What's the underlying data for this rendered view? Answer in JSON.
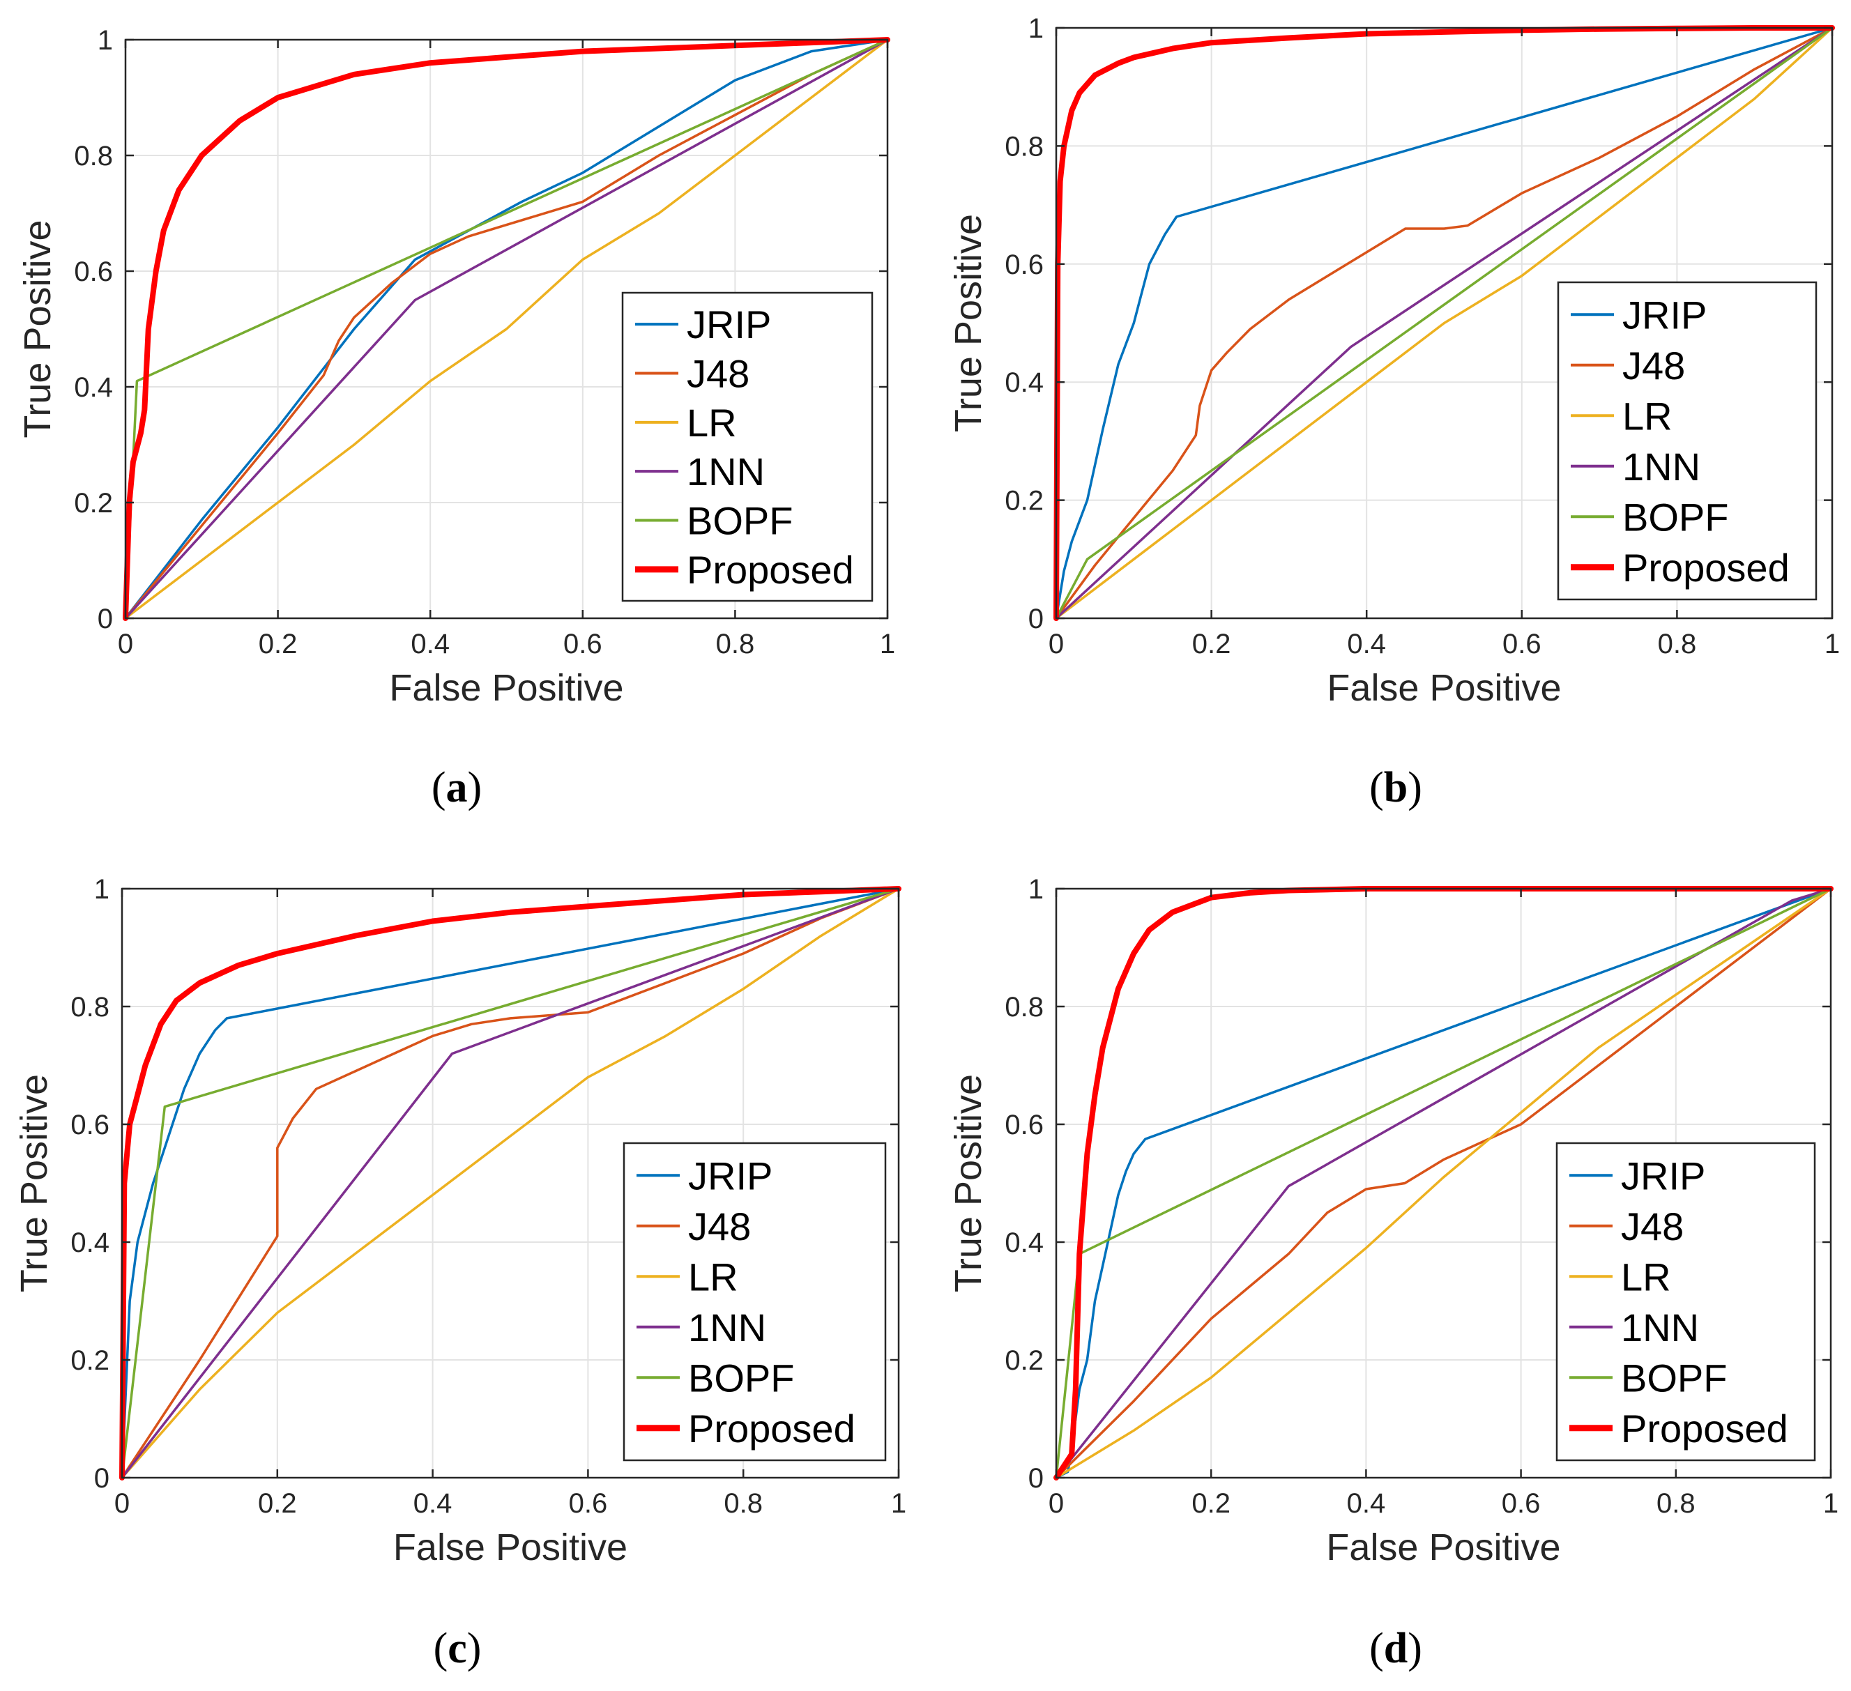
{
  "figure": {
    "captions": [
      "a",
      "b",
      "c",
      "d"
    ]
  },
  "chart_data": [
    {
      "panel": "a",
      "type": "line",
      "xlabel": "False Positive",
      "ylabel": "True Positive",
      "xlim": [
        0,
        1
      ],
      "ylim": [
        0,
        1
      ],
      "xticks": [
        "0",
        "0.2",
        "0.4",
        "0.6",
        "0.8",
        "1"
      ],
      "yticks": [
        "0",
        "0.2",
        "0.4",
        "0.6",
        "0.8",
        "1"
      ],
      "grid": true,
      "legend_position": "bottom-right",
      "series": [
        {
          "name": "JRIP",
          "color": "#0072BD",
          "x": [
            0,
            0.1,
            0.2,
            0.3,
            0.38,
            0.45,
            0.52,
            0.6,
            0.7,
            0.8,
            0.9,
            1
          ],
          "y": [
            0,
            0.17,
            0.33,
            0.5,
            0.62,
            0.67,
            0.72,
            0.77,
            0.85,
            0.93,
            0.98,
            1
          ]
        },
        {
          "name": "J48",
          "color": "#D95319",
          "x": [
            0,
            0.1,
            0.2,
            0.26,
            0.28,
            0.3,
            0.35,
            0.4,
            0.45,
            0.5,
            0.6,
            0.7,
            0.8,
            0.9,
            1
          ],
          "y": [
            0,
            0.16,
            0.32,
            0.42,
            0.48,
            0.52,
            0.58,
            0.63,
            0.66,
            0.68,
            0.72,
            0.8,
            0.87,
            0.94,
            1
          ]
        },
        {
          "name": "LR",
          "color": "#EDB120",
          "x": [
            0,
            0.1,
            0.2,
            0.3,
            0.4,
            0.5,
            0.6,
            0.7,
            0.8,
            0.9,
            1
          ],
          "y": [
            0,
            0.1,
            0.2,
            0.3,
            0.41,
            0.5,
            0.62,
            0.7,
            0.8,
            0.9,
            1
          ]
        },
        {
          "name": "1NN",
          "color": "#7E2F8E",
          "x": [
            0,
            0.38,
            1
          ],
          "y": [
            0,
            0.55,
            1
          ]
        },
        {
          "name": "BOPF",
          "color": "#77AC30",
          "x": [
            0,
            0.015,
            1
          ],
          "y": [
            0,
            0.41,
            1
          ]
        },
        {
          "name": "Proposed",
          "color": "#FF0000",
          "x": [
            0,
            0.005,
            0.01,
            0.02,
            0.025,
            0.03,
            0.04,
            0.05,
            0.07,
            0.1,
            0.15,
            0.2,
            0.3,
            0.4,
            0.5,
            0.6,
            0.7,
            0.8,
            0.9,
            1
          ],
          "y": [
            0,
            0.2,
            0.27,
            0.32,
            0.36,
            0.5,
            0.6,
            0.67,
            0.74,
            0.8,
            0.86,
            0.9,
            0.94,
            0.96,
            0.97,
            0.98,
            0.985,
            0.99,
            0.995,
            1
          ]
        }
      ]
    },
    {
      "panel": "b",
      "type": "line",
      "xlabel": "False Positive",
      "ylabel": "True Positive",
      "xlim": [
        0,
        1
      ],
      "ylim": [
        0,
        1
      ],
      "xticks": [
        "0",
        "0.2",
        "0.4",
        "0.6",
        "0.8",
        "1"
      ],
      "yticks": [
        "0",
        "0.2",
        "0.4",
        "0.6",
        "0.8",
        "1"
      ],
      "grid": true,
      "legend_position": "bottom-right",
      "series": [
        {
          "name": "JRIP",
          "color": "#0072BD",
          "x": [
            0,
            0.01,
            0.02,
            0.04,
            0.06,
            0.08,
            0.1,
            0.11,
            0.12,
            0.14,
            0.155,
            1
          ],
          "y": [
            0,
            0.08,
            0.13,
            0.2,
            0.32,
            0.43,
            0.5,
            0.55,
            0.6,
            0.65,
            0.68,
            1
          ]
        },
        {
          "name": "J48",
          "color": "#D95319",
          "x": [
            0,
            0.05,
            0.1,
            0.15,
            0.18,
            0.185,
            0.2,
            0.22,
            0.25,
            0.3,
            0.35,
            0.4,
            0.45,
            0.5,
            0.53,
            0.6,
            0.7,
            0.8,
            0.9,
            1
          ],
          "y": [
            0,
            0.09,
            0.17,
            0.25,
            0.31,
            0.36,
            0.42,
            0.45,
            0.49,
            0.54,
            0.58,
            0.62,
            0.66,
            0.66,
            0.665,
            0.72,
            0.78,
            0.85,
            0.93,
            1
          ]
        },
        {
          "name": "LR",
          "color": "#EDB120",
          "x": [
            0,
            0.1,
            0.2,
            0.3,
            0.4,
            0.5,
            0.6,
            0.7,
            0.8,
            0.9,
            1
          ],
          "y": [
            0,
            0.1,
            0.2,
            0.3,
            0.4,
            0.5,
            0.58,
            0.68,
            0.78,
            0.88,
            1
          ]
        },
        {
          "name": "1NN",
          "color": "#7E2F8E",
          "x": [
            0,
            0.38,
            1
          ],
          "y": [
            0,
            0.46,
            1
          ]
        },
        {
          "name": "BOPF",
          "color": "#77AC30",
          "x": [
            0,
            0.04,
            1
          ],
          "y": [
            0,
            0.1,
            1
          ]
        },
        {
          "name": "Proposed",
          "color": "#FF0000",
          "x": [
            0,
            0.002,
            0.005,
            0.01,
            0.02,
            0.03,
            0.05,
            0.08,
            0.1,
            0.15,
            0.2,
            0.3,
            0.4,
            0.5,
            0.6,
            0.7,
            0.8,
            0.9,
            1
          ],
          "y": [
            0,
            0.6,
            0.74,
            0.8,
            0.86,
            0.89,
            0.92,
            0.94,
            0.95,
            0.965,
            0.975,
            0.983,
            0.99,
            0.993,
            0.996,
            0.998,
            0.999,
            1,
            1
          ]
        }
      ]
    },
    {
      "panel": "c",
      "type": "line",
      "xlabel": "False Positive",
      "ylabel": "True Positive",
      "xlim": [
        0,
        1
      ],
      "ylim": [
        0,
        1
      ],
      "xticks": [
        "0",
        "0.2",
        "0.4",
        "0.6",
        "0.8",
        "1"
      ],
      "yticks": [
        "0",
        "0.2",
        "0.4",
        "0.6",
        "0.8",
        "1"
      ],
      "grid": true,
      "legend_position": "bottom-right",
      "series": [
        {
          "name": "JRIP",
          "color": "#0072BD",
          "x": [
            0,
            0.01,
            0.02,
            0.04,
            0.06,
            0.08,
            0.1,
            0.12,
            0.135,
            1
          ],
          "y": [
            0,
            0.3,
            0.4,
            0.5,
            0.58,
            0.66,
            0.72,
            0.76,
            0.78,
            1
          ]
        },
        {
          "name": "J48",
          "color": "#D95319",
          "x": [
            0,
            0.1,
            0.2,
            0.2,
            0.22,
            0.25,
            0.3,
            0.35,
            0.4,
            0.45,
            0.5,
            0.6,
            0.7,
            0.8,
            0.9,
            1
          ],
          "y": [
            0,
            0.2,
            0.41,
            0.56,
            0.61,
            0.66,
            0.69,
            0.72,
            0.75,
            0.77,
            0.78,
            0.79,
            0.84,
            0.89,
            0.95,
            1
          ]
        },
        {
          "name": "LR",
          "color": "#EDB120",
          "x": [
            0,
            0.1,
            0.2,
            0.3,
            0.4,
            0.5,
            0.6,
            0.7,
            0.8,
            0.9,
            1
          ],
          "y": [
            0,
            0.15,
            0.28,
            0.38,
            0.48,
            0.58,
            0.68,
            0.75,
            0.83,
            0.92,
            1
          ]
        },
        {
          "name": "1NN",
          "color": "#7E2F8E",
          "x": [
            0,
            0.425,
            1
          ],
          "y": [
            0,
            0.72,
            1
          ]
        },
        {
          "name": "BOPF",
          "color": "#77AC30",
          "x": [
            0,
            0.055,
            1
          ],
          "y": [
            0,
            0.63,
            1
          ]
        },
        {
          "name": "Proposed",
          "color": "#FF0000",
          "x": [
            0,
            0.003,
            0.01,
            0.02,
            0.03,
            0.05,
            0.07,
            0.1,
            0.15,
            0.2,
            0.3,
            0.4,
            0.5,
            0.6,
            0.7,
            0.8,
            0.9,
            1
          ],
          "y": [
            0,
            0.5,
            0.6,
            0.65,
            0.7,
            0.77,
            0.81,
            0.84,
            0.87,
            0.89,
            0.92,
            0.945,
            0.96,
            0.97,
            0.98,
            0.99,
            0.995,
            1
          ]
        }
      ]
    },
    {
      "panel": "d",
      "type": "line",
      "xlabel": "False Positive",
      "ylabel": "True Positive",
      "xlim": [
        0,
        1
      ],
      "ylim": [
        0,
        1
      ],
      "xticks": [
        "0",
        "0.2",
        "0.4",
        "0.6",
        "0.8",
        "1"
      ],
      "yticks": [
        "0",
        "0.2",
        "0.4",
        "0.6",
        "0.8",
        "1"
      ],
      "grid": true,
      "legend_position": "bottom-right",
      "series": [
        {
          "name": "JRIP",
          "color": "#0072BD",
          "x": [
            0,
            0.015,
            0.02,
            0.03,
            0.04,
            0.05,
            0.06,
            0.07,
            0.08,
            0.09,
            0.1,
            0.115,
            1
          ],
          "y": [
            0,
            0.01,
            0.05,
            0.15,
            0.2,
            0.3,
            0.36,
            0.42,
            0.48,
            0.52,
            0.55,
            0.575,
            1
          ]
        },
        {
          "name": "J48",
          "color": "#D95319",
          "x": [
            0,
            0.1,
            0.2,
            0.3,
            0.35,
            0.4,
            0.45,
            0.5,
            0.6,
            0.7,
            0.8,
            0.9,
            1
          ],
          "y": [
            0,
            0.13,
            0.27,
            0.38,
            0.45,
            0.49,
            0.5,
            0.54,
            0.6,
            0.7,
            0.8,
            0.9,
            1
          ]
        },
        {
          "name": "LR",
          "color": "#EDB120",
          "x": [
            0,
            0.1,
            0.2,
            0.3,
            0.4,
            0.5,
            0.6,
            0.7,
            0.8,
            0.9,
            1
          ],
          "y": [
            0,
            0.08,
            0.17,
            0.28,
            0.39,
            0.51,
            0.62,
            0.73,
            0.82,
            0.91,
            1
          ]
        },
        {
          "name": "1NN",
          "color": "#7E2F8E",
          "x": [
            0,
            0.3,
            0.95,
            1
          ],
          "y": [
            0,
            0.495,
            0.98,
            1
          ]
        },
        {
          "name": "BOPF",
          "color": "#77AC30",
          "x": [
            0,
            0.03,
            1
          ],
          "y": [
            0,
            0.38,
            1
          ]
        },
        {
          "name": "Proposed",
          "color": "#FF0000",
          "x": [
            0,
            0.01,
            0.02,
            0.025,
            0.03,
            0.04,
            0.05,
            0.06,
            0.08,
            0.1,
            0.12,
            0.15,
            0.2,
            0.25,
            0.3,
            0.4,
            0.5,
            0.6,
            0.8,
            1
          ],
          "y": [
            0,
            0.02,
            0.04,
            0.15,
            0.38,
            0.55,
            0.65,
            0.73,
            0.83,
            0.89,
            0.93,
            0.96,
            0.985,
            0.993,
            0.997,
            1,
            1,
            1,
            1,
            1
          ]
        }
      ]
    }
  ]
}
